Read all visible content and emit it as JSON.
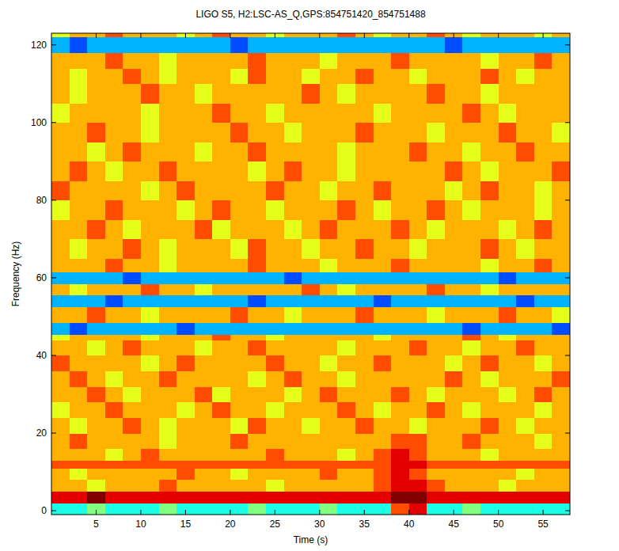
{
  "chart_data": {
    "type": "heatmap",
    "title": "LIGO S5, H2:LSC-AS_Q,GPS:854751420_854751488",
    "x_label": "Time (s)",
    "y_label": "Frequency (Hz)",
    "xlim": [
      0,
      58
    ],
    "ylim": [
      -1,
      123
    ],
    "xticks": [
      5,
      10,
      15,
      20,
      25,
      30,
      35,
      40,
      45,
      50,
      55
    ],
    "yticks": [
      0,
      20,
      40,
      60,
      80,
      100,
      120
    ],
    "zlim": [
      0,
      10
    ],
    "x_bins": [
      0,
      2,
      4,
      6,
      8,
      10,
      12,
      14,
      16,
      18,
      20,
      22,
      24,
      26,
      28,
      30,
      32,
      34,
      36,
      38,
      40,
      42,
      44,
      46,
      48,
      50,
      52,
      54,
      56,
      58
    ],
    "y_bins": [
      -1,
      2,
      5,
      8,
      11,
      13,
      16,
      20,
      24,
      28,
      32,
      36,
      40,
      44,
      45.5,
      48.5,
      52.5,
      55.5,
      58.5,
      61.5,
      65,
      70,
      75,
      80,
      85,
      90,
      95,
      100,
      105,
      110,
      114,
      118,
      122,
      123
    ],
    "cells": [
      [
        4,
        4,
        5,
        4,
        4,
        4,
        5,
        4,
        4,
        4,
        4,
        5,
        4,
        4,
        4,
        5,
        4,
        4,
        4,
        8,
        9,
        4,
        4,
        5,
        4,
        4,
        4,
        4,
        4
      ],
      [
        9,
        9,
        10,
        9,
        9,
        9,
        9,
        9,
        9,
        9,
        9,
        9,
        9,
        9,
        9,
        9,
        9,
        9,
        9,
        10,
        10,
        9,
        9,
        9,
        9,
        9,
        9,
        9,
        9
      ],
      [
        7,
        7,
        6,
        7,
        7,
        7,
        8,
        7,
        7,
        7,
        7,
        7,
        6,
        7,
        7,
        7,
        7,
        7,
        8,
        9,
        9,
        8,
        7,
        7,
        7,
        6,
        7,
        7,
        7
      ],
      [
        7,
        6,
        7,
        7,
        7,
        7,
        7,
        8,
        7,
        7,
        6,
        7,
        7,
        7,
        7,
        8,
        7,
        7,
        8,
        9,
        8,
        7,
        7,
        7,
        7,
        7,
        6,
        7,
        7
      ],
      [
        8,
        8,
        8,
        8,
        8,
        8,
        8,
        8,
        8,
        8,
        8,
        8,
        8,
        8,
        8,
        8,
        8,
        8,
        8,
        9,
        9,
        8,
        8,
        8,
        8,
        8,
        8,
        8,
        8
      ],
      [
        7,
        7,
        7,
        6,
        7,
        8,
        7,
        7,
        7,
        7,
        7,
        7,
        8,
        7,
        7,
        7,
        6,
        7,
        8,
        9,
        8,
        7,
        7,
        7,
        6,
        7,
        7,
        7,
        7
      ],
      [
        7,
        8,
        7,
        7,
        7,
        7,
        6,
        7,
        7,
        7,
        8,
        7,
        7,
        7,
        7,
        7,
        7,
        7,
        7,
        8,
        8,
        7,
        7,
        8,
        7,
        7,
        7,
        6,
        7
      ],
      [
        7,
        6,
        7,
        7,
        8,
        7,
        6,
        7,
        7,
        7,
        6,
        8,
        7,
        7,
        6,
        7,
        7,
        8,
        7,
        7,
        6,
        7,
        7,
        7,
        8,
        7,
        6,
        7,
        7
      ],
      [
        6,
        7,
        7,
        8,
        7,
        7,
        7,
        6,
        7,
        8,
        7,
        7,
        6,
        7,
        7,
        7,
        8,
        7,
        6,
        7,
        7,
        8,
        7,
        6,
        7,
        7,
        7,
        6,
        7
      ],
      [
        7,
        7,
        8,
        7,
        6,
        7,
        7,
        7,
        8,
        6,
        7,
        7,
        7,
        6,
        7,
        8,
        7,
        7,
        7,
        8,
        7,
        6,
        7,
        7,
        7,
        6,
        7,
        8,
        7
      ],
      [
        7,
        8,
        7,
        6,
        7,
        7,
        8,
        7,
        7,
        7,
        7,
        6,
        7,
        8,
        7,
        7,
        6,
        7,
        7,
        7,
        7,
        7,
        8,
        7,
        6,
        7,
        7,
        7,
        8
      ],
      [
        8,
        7,
        7,
        7,
        7,
        6,
        7,
        8,
        7,
        7,
        7,
        7,
        8,
        7,
        7,
        6,
        7,
        7,
        8,
        7,
        7,
        7,
        6,
        7,
        8,
        7,
        7,
        6,
        7
      ],
      [
        7,
        7,
        6,
        7,
        8,
        7,
        7,
        7,
        6,
        7,
        7,
        8,
        7,
        7,
        7,
        7,
        6,
        7,
        7,
        7,
        8,
        7,
        7,
        6,
        7,
        7,
        8,
        7,
        7
      ],
      [
        6,
        7,
        7,
        7,
        7,
        6,
        7,
        7,
        7,
        8,
        7,
        7,
        6,
        7,
        7,
        7,
        7,
        7,
        6,
        7,
        7,
        7,
        7,
        8,
        7,
        6,
        7,
        7,
        7
      ],
      [
        3,
        2,
        3,
        3,
        3,
        3,
        3,
        2,
        3,
        3,
        3,
        3,
        3,
        3,
        3,
        3,
        3,
        3,
        3,
        3,
        3,
        3,
        3,
        2,
        3,
        3,
        3,
        3,
        2
      ],
      [
        7,
        7,
        8,
        7,
        7,
        6,
        7,
        7,
        7,
        7,
        8,
        7,
        7,
        6,
        7,
        7,
        7,
        8,
        7,
        7,
        7,
        6,
        7,
        7,
        7,
        8,
        7,
        7,
        6
      ],
      [
        3,
        3,
        3,
        2,
        3,
        3,
        3,
        3,
        3,
        3,
        3,
        2,
        3,
        3,
        3,
        3,
        3,
        3,
        2,
        3,
        3,
        3,
        3,
        3,
        3,
        3,
        2,
        3,
        3
      ],
      [
        7,
        6,
        7,
        7,
        7,
        8,
        7,
        7,
        6,
        7,
        7,
        7,
        7,
        7,
        8,
        7,
        6,
        7,
        7,
        7,
        7,
        8,
        7,
        7,
        6,
        7,
        7,
        7,
        7
      ],
      [
        3,
        3,
        3,
        3,
        2,
        3,
        3,
        3,
        3,
        3,
        3,
        3,
        3,
        2,
        3,
        3,
        3,
        3,
        3,
        3,
        3,
        3,
        3,
        3,
        3,
        2,
        3,
        3,
        3
      ],
      [
        7,
        7,
        7,
        8,
        7,
        7,
        6,
        7,
        7,
        7,
        7,
        8,
        7,
        7,
        7,
        6,
        7,
        7,
        7,
        8,
        7,
        7,
        7,
        7,
        6,
        7,
        7,
        8,
        7
      ],
      [
        7,
        6,
        7,
        7,
        8,
        7,
        6,
        7,
        7,
        7,
        6,
        8,
        7,
        7,
        6,
        7,
        7,
        8,
        7,
        7,
        6,
        7,
        7,
        7,
        8,
        7,
        6,
        7,
        7
      ],
      [
        7,
        7,
        8,
        7,
        6,
        7,
        7,
        7,
        8,
        6,
        7,
        7,
        7,
        6,
        7,
        8,
        7,
        7,
        7,
        8,
        7,
        6,
        7,
        7,
        7,
        6,
        7,
        8,
        7
      ],
      [
        6,
        7,
        7,
        8,
        7,
        7,
        7,
        6,
        7,
        8,
        7,
        7,
        6,
        7,
        7,
        7,
        8,
        7,
        6,
        7,
        7,
        8,
        7,
        6,
        7,
        7,
        7,
        6,
        7
      ],
      [
        8,
        7,
        7,
        7,
        7,
        6,
        7,
        8,
        7,
        7,
        7,
        7,
        8,
        7,
        7,
        6,
        7,
        7,
        8,
        7,
        7,
        7,
        6,
        7,
        8,
        7,
        7,
        6,
        7
      ],
      [
        7,
        8,
        7,
        6,
        7,
        7,
        8,
        7,
        7,
        7,
        7,
        6,
        7,
        8,
        7,
        7,
        6,
        7,
        7,
        7,
        7,
        7,
        8,
        7,
        6,
        7,
        7,
        7,
        8
      ],
      [
        7,
        7,
        6,
        7,
        8,
        7,
        7,
        7,
        6,
        7,
        7,
        8,
        7,
        7,
        7,
        7,
        6,
        7,
        7,
        7,
        8,
        7,
        7,
        6,
        7,
        7,
        8,
        7,
        7
      ],
      [
        7,
        7,
        8,
        7,
        7,
        6,
        7,
        7,
        7,
        7,
        8,
        7,
        7,
        6,
        7,
        7,
        7,
        8,
        7,
        7,
        7,
        6,
        7,
        7,
        7,
        8,
        7,
        7,
        6
      ],
      [
        6,
        7,
        7,
        7,
        7,
        6,
        7,
        7,
        7,
        8,
        7,
        7,
        6,
        7,
        7,
        7,
        7,
        7,
        6,
        7,
        7,
        7,
        7,
        8,
        7,
        6,
        7,
        7,
        7
      ],
      [
        7,
        6,
        7,
        7,
        7,
        8,
        7,
        7,
        6,
        7,
        7,
        7,
        7,
        7,
        8,
        7,
        6,
        7,
        7,
        7,
        7,
        8,
        7,
        7,
        6,
        7,
        7,
        7,
        7
      ],
      [
        7,
        6,
        7,
        7,
        8,
        7,
        6,
        7,
        7,
        7,
        6,
        8,
        7,
        7,
        6,
        7,
        7,
        8,
        7,
        7,
        6,
        7,
        7,
        7,
        8,
        7,
        6,
        7,
        7
      ],
      [
        7,
        7,
        7,
        8,
        7,
        7,
        6,
        7,
        7,
        7,
        7,
        8,
        7,
        7,
        7,
        6,
        7,
        7,
        7,
        8,
        7,
        7,
        7,
        7,
        6,
        7,
        7,
        8,
        7
      ],
      [
        3,
        2,
        3,
        3,
        3,
        3,
        3,
        3,
        3,
        3,
        2,
        3,
        3,
        3,
        3,
        3,
        3,
        3,
        3,
        3,
        3,
        3,
        2,
        3,
        3,
        3,
        3,
        3,
        3
      ],
      [
        6,
        7,
        7,
        8,
        7,
        7,
        7,
        6,
        7,
        8,
        7,
        7,
        6,
        7,
        7,
        7,
        8,
        7,
        6,
        7,
        7,
        8,
        7,
        6,
        7,
        7,
        7,
        6,
        7
      ]
    ],
    "grid": false
  }
}
